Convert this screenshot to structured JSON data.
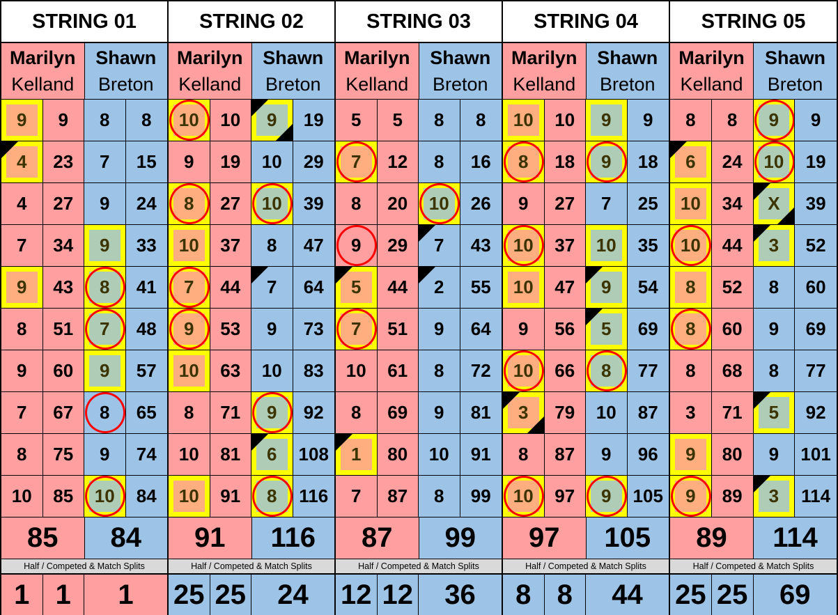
{
  "players": {
    "marilyn": {
      "first": "Marilyn",
      "last": "Kelland"
    },
    "shawn": {
      "first": "Shawn",
      "last": "Breton"
    }
  },
  "colors": {
    "marilyn": "#FF9F9F",
    "shawn": "#9DC3E6",
    "highlight": "#FFFF00",
    "marilyn_fill": "#FFAE80",
    "shawn_fill": "#AECCB6",
    "circle": "#FF0000"
  },
  "marker_legend": {
    "y": "yellow highlight box",
    "c": "red circle",
    "t": "black triangle top-left",
    "b": "black triangle bottom-right"
  },
  "split_label": "Half / Competed & Match Splits",
  "strings": [
    {
      "title": "STRING 01",
      "marilyn": {
        "frames": [
          [
            "9",
            "y"
          ],
          [
            "4",
            "yt"
          ],
          [
            "4",
            ""
          ],
          [
            "7",
            ""
          ],
          [
            "9",
            "y"
          ],
          [
            "8",
            ""
          ],
          [
            "9",
            ""
          ],
          [
            "7",
            ""
          ],
          [
            "8",
            ""
          ],
          [
            "10",
            ""
          ]
        ],
        "cumulative": [
          "9",
          "23",
          "27",
          "34",
          "43",
          "51",
          "60",
          "67",
          "75",
          "85"
        ],
        "total": "85"
      },
      "shawn": {
        "frames": [
          [
            "8",
            ""
          ],
          [
            "7",
            ""
          ],
          [
            "9",
            ""
          ],
          [
            "9",
            "y"
          ],
          [
            "8",
            "yc"
          ],
          [
            "7",
            "yc"
          ],
          [
            "9",
            "y"
          ],
          [
            "8",
            "c"
          ],
          [
            "9",
            ""
          ],
          [
            "10",
            "yc"
          ]
        ],
        "cumulative": [
          "8",
          "15",
          "24",
          "33",
          "41",
          "48",
          "57",
          "65",
          "74",
          "84"
        ],
        "total": "84"
      },
      "splits": {
        "half1": "1",
        "half2": "1",
        "match": "1",
        "color": "marilyn"
      }
    },
    {
      "title": "STRING 02",
      "marilyn": {
        "frames": [
          [
            "10",
            "yc"
          ],
          [
            "9",
            ""
          ],
          [
            "8",
            "yc"
          ],
          [
            "10",
            "y"
          ],
          [
            "7",
            "yc"
          ],
          [
            "9",
            "yc"
          ],
          [
            "10",
            "y"
          ],
          [
            "8",
            ""
          ],
          [
            "10",
            ""
          ],
          [
            "10",
            "y"
          ]
        ],
        "cumulative": [
          "10",
          "19",
          "27",
          "37",
          "44",
          "53",
          "63",
          "71",
          "81",
          "91"
        ],
        "total": "91"
      },
      "shawn": {
        "frames": [
          [
            "9",
            "ytb"
          ],
          [
            "10",
            ""
          ],
          [
            "10",
            "yc"
          ],
          [
            "8",
            ""
          ],
          [
            "7",
            "t"
          ],
          [
            "9",
            ""
          ],
          [
            "10",
            ""
          ],
          [
            "9",
            "yc"
          ],
          [
            "6",
            "yt"
          ],
          [
            "8",
            "yc"
          ]
        ],
        "cumulative": [
          "19",
          "29",
          "39",
          "47",
          "64",
          "73",
          "83",
          "92",
          "108",
          "116"
        ],
        "total": "116"
      },
      "splits": {
        "half1": "25",
        "half2": "25",
        "match": "24",
        "color": "shawn"
      }
    },
    {
      "title": "STRING 03",
      "marilyn": {
        "frames": [
          [
            "5",
            ""
          ],
          [
            "7",
            "yc"
          ],
          [
            "8",
            ""
          ],
          [
            "9",
            "c"
          ],
          [
            "5",
            "yt"
          ],
          [
            "7",
            "yc"
          ],
          [
            "10",
            ""
          ],
          [
            "8",
            ""
          ],
          [
            "1",
            "yt"
          ],
          [
            "7",
            ""
          ]
        ],
        "cumulative": [
          "5",
          "12",
          "20",
          "29",
          "44",
          "51",
          "61",
          "69",
          "80",
          "87"
        ],
        "total": "87"
      },
      "shawn": {
        "frames": [
          [
            "8",
            ""
          ],
          [
            "8",
            ""
          ],
          [
            "10",
            "yc"
          ],
          [
            "7",
            "t"
          ],
          [
            "2",
            "t"
          ],
          [
            "9",
            ""
          ],
          [
            "8",
            ""
          ],
          [
            "9",
            ""
          ],
          [
            "10",
            ""
          ],
          [
            "8",
            ""
          ]
        ],
        "cumulative": [
          "8",
          "16",
          "26",
          "43",
          "55",
          "64",
          "72",
          "81",
          "91",
          "99"
        ],
        "total": "99"
      },
      "splits": {
        "half1": "12",
        "half2": "12",
        "match": "36",
        "color": "shawn"
      }
    },
    {
      "title": "STRING 04",
      "marilyn": {
        "frames": [
          [
            "10",
            "y"
          ],
          [
            "8",
            "yc"
          ],
          [
            "9",
            ""
          ],
          [
            "10",
            "yc"
          ],
          [
            "10",
            "y"
          ],
          [
            "9",
            ""
          ],
          [
            "10",
            "yc"
          ],
          [
            "3",
            "ytb"
          ],
          [
            "8",
            ""
          ],
          [
            "10",
            "yc"
          ]
        ],
        "cumulative": [
          "10",
          "18",
          "27",
          "37",
          "47",
          "56",
          "66",
          "79",
          "87",
          "97"
        ],
        "total": "97"
      },
      "shawn": {
        "frames": [
          [
            "9",
            "y"
          ],
          [
            "9",
            "yc"
          ],
          [
            "7",
            ""
          ],
          [
            "10",
            "y"
          ],
          [
            "9",
            "yt"
          ],
          [
            "5",
            "yt"
          ],
          [
            "8",
            "yc"
          ],
          [
            "10",
            ""
          ],
          [
            "9",
            ""
          ],
          [
            "9",
            "yc"
          ]
        ],
        "cumulative": [
          "9",
          "18",
          "25",
          "35",
          "54",
          "69",
          "77",
          "87",
          "96",
          "105"
        ],
        "total": "105"
      },
      "splits": {
        "half1": "8",
        "half2": "8",
        "match": "44",
        "color": "shawn"
      }
    },
    {
      "title": "STRING 05",
      "marilyn": {
        "frames": [
          [
            "8",
            ""
          ],
          [
            "6",
            "yt"
          ],
          [
            "10",
            "y"
          ],
          [
            "10",
            "yc"
          ],
          [
            "8",
            "y"
          ],
          [
            "8",
            "yc"
          ],
          [
            "8",
            ""
          ],
          [
            "3",
            ""
          ],
          [
            "9",
            "y"
          ],
          [
            "9",
            "yc"
          ]
        ],
        "cumulative": [
          "8",
          "24",
          "34",
          "44",
          "52",
          "60",
          "68",
          "71",
          "80",
          "89"
        ],
        "total": "89"
      },
      "shawn": {
        "frames": [
          [
            "9",
            "yc"
          ],
          [
            "10",
            "yc"
          ],
          [
            "X",
            "ytb"
          ],
          [
            "3",
            "yt"
          ],
          [
            "8",
            ""
          ],
          [
            "9",
            ""
          ],
          [
            "8",
            ""
          ],
          [
            "5",
            "yt"
          ],
          [
            "9",
            ""
          ],
          [
            "3",
            "yt"
          ]
        ],
        "cumulative": [
          "9",
          "19",
          "39",
          "52",
          "60",
          "69",
          "77",
          "92",
          "101",
          "114"
        ],
        "total": "114"
      },
      "splits": {
        "half1": "25",
        "half2": "25",
        "match": "69",
        "color": "shawn"
      }
    }
  ]
}
